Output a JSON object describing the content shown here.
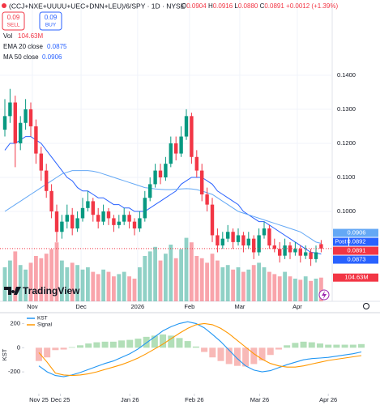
{
  "header": {
    "title": "(CCJ+NXE+UUUU+UEC+DNN+LEU)/6/SPY · 1D · NYSE",
    "ohlc": [
      {
        "key": "O",
        "value": "0.0904"
      },
      {
        "key": "H",
        "value": "0.0916"
      },
      {
        "key": "L",
        "value": "0.0880"
      },
      {
        "key": "C",
        "value": "0.0891"
      }
    ],
    "change": "+0.0012 (+1.39%)",
    "sell": {
      "price": "0.09",
      "label": "SELL"
    },
    "buy": {
      "price": "0.09",
      "label": "BUY"
    },
    "vol_label": "Vol",
    "watermark": "TradingView"
  },
  "chart_data": [
    {
      "type": "candlestick",
      "up_color": "#089981",
      "down_color": "#f23645",
      "grid": true,
      "ylim": [
        0.0736,
        0.1621
      ],
      "yticks": [
        {
          "value": 0.1,
          "label": "0.1000"
        },
        {
          "value": 0.11,
          "label": "0.1100"
        },
        {
          "value": 0.12,
          "label": "0.1200"
        },
        {
          "value": 0.13,
          "label": "0.1300"
        },
        {
          "value": 0.14,
          "label": "0.1400"
        }
      ],
      "xlim": [
        -0.9375,
        63.125
      ],
      "xticks": [
        {
          "value": 5.3,
          "label": "Nov"
        },
        {
          "value": 14.7,
          "label": "Dec"
        },
        {
          "value": 25.6,
          "label": "2026"
        },
        {
          "value": 35.6,
          "label": "Feb"
        },
        {
          "value": 45.3,
          "label": "Mar"
        },
        {
          "value": 56.4,
          "label": "Apr"
        }
      ],
      "candles": [
        [
          0.124,
          0.133,
          0.122,
          0.128
        ],
        [
          0.128,
          0.136,
          0.126,
          0.132
        ],
        [
          0.132,
          0.134,
          0.113,
          0.12
        ],
        [
          0.12,
          0.128,
          0.118,
          0.126
        ],
        [
          0.126,
          0.133,
          0.124,
          0.13
        ],
        [
          0.13,
          0.132,
          0.122,
          0.125
        ],
        [
          0.125,
          0.127,
          0.114,
          0.117
        ],
        [
          0.117,
          0.119,
          0.109,
          0.112
        ],
        [
          0.112,
          0.114,
          0.104,
          0.106
        ],
        [
          0.106,
          0.108,
          0.098,
          0.1
        ],
        [
          0.1,
          0.102,
          0.091,
          0.094
        ],
        [
          0.094,
          0.099,
          0.092,
          0.097
        ],
        [
          0.097,
          0.102,
          0.095,
          0.099
        ],
        [
          0.099,
          0.101,
          0.093,
          0.095
        ],
        [
          0.095,
          0.1,
          0.094,
          0.098
        ],
        [
          0.098,
          0.104,
          0.097,
          0.101
        ],
        [
          0.101,
          0.106,
          0.1,
          0.103
        ],
        [
          0.103,
          0.104,
          0.097,
          0.099
        ],
        [
          0.099,
          0.101,
          0.095,
          0.097
        ],
        [
          0.097,
          0.102,
          0.096,
          0.1
        ],
        [
          0.1,
          0.101,
          0.096,
          0.098
        ],
        [
          0.098,
          0.099,
          0.094,
          0.096
        ],
        [
          0.096,
          0.099,
          0.095,
          0.097
        ],
        [
          0.097,
          0.101,
          0.096,
          0.099
        ],
        [
          0.099,
          0.1,
          0.095,
          0.097
        ],
        [
          0.097,
          0.098,
          0.093,
          0.095
        ],
        [
          0.095,
          0.1,
          0.094,
          0.098
        ],
        [
          0.098,
          0.106,
          0.097,
          0.104
        ],
        [
          0.104,
          0.11,
          0.103,
          0.108
        ],
        [
          0.108,
          0.114,
          0.107,
          0.112
        ],
        [
          0.112,
          0.114,
          0.108,
          0.11
        ],
        [
          0.11,
          0.116,
          0.109,
          0.114
        ],
        [
          0.114,
          0.122,
          0.113,
          0.12
        ],
        [
          0.12,
          0.122,
          0.115,
          0.117
        ],
        [
          0.117,
          0.125,
          0.116,
          0.122
        ],
        [
          0.122,
          0.13,
          0.121,
          0.128
        ],
        [
          0.128,
          0.129,
          0.114,
          0.116
        ],
        [
          0.116,
          0.118,
          0.11,
          0.112
        ],
        [
          0.112,
          0.114,
          0.103,
          0.105
        ],
        [
          0.105,
          0.107,
          0.1,
          0.102
        ],
        [
          0.102,
          0.104,
          0.091,
          0.093
        ],
        [
          0.093,
          0.095,
          0.088,
          0.09
        ],
        [
          0.09,
          0.094,
          0.089,
          0.092
        ],
        [
          0.092,
          0.096,
          0.091,
          0.094
        ],
        [
          0.094,
          0.095,
          0.089,
          0.091
        ],
        [
          0.091,
          0.095,
          0.09,
          0.093
        ],
        [
          0.093,
          0.094,
          0.088,
          0.09
        ],
        [
          0.09,
          0.094,
          0.089,
          0.092
        ],
        [
          0.092,
          0.093,
          0.086,
          0.088
        ],
        [
          0.088,
          0.095,
          0.087,
          0.093
        ],
        [
          0.093,
          0.097,
          0.092,
          0.095
        ],
        [
          0.095,
          0.096,
          0.089,
          0.09
        ],
        [
          0.09,
          0.092,
          0.088,
          0.089
        ],
        [
          0.089,
          0.091,
          0.085,
          0.087
        ],
        [
          0.087,
          0.092,
          0.086,
          0.09
        ],
        [
          0.09,
          0.091,
          0.086,
          0.088
        ],
        [
          0.088,
          0.091,
          0.087,
          0.089
        ],
        [
          0.089,
          0.09,
          0.085,
          0.087
        ],
        [
          0.087,
          0.09,
          0.086,
          0.088
        ],
        [
          0.088,
          0.089,
          0.084,
          0.086
        ],
        [
          0.086,
          0.09,
          0.085,
          0.088
        ],
        [
          0.0904,
          0.0916,
          0.088,
          0.0891
        ]
      ],
      "volume": [
        150,
        180,
        220,
        160,
        140,
        170,
        200,
        190,
        210,
        230,
        260,
        180,
        150,
        170,
        160,
        140,
        150,
        130,
        120,
        140,
        130,
        110,
        120,
        130,
        110,
        100,
        150,
        200,
        220,
        240,
        180,
        210,
        250,
        190,
        230,
        280,
        260,
        200,
        190,
        170,
        210,
        180,
        150,
        160,
        140,
        150,
        130,
        140,
        160,
        170,
        150,
        130,
        120,
        110,
        130,
        110,
        100,
        95,
        110,
        90,
        100,
        104.63
      ],
      "volume_label": "104.63M",
      "volume_tag_color": "#f23645",
      "series": [
        {
          "name": "EMA 20 close",
          "color": "#2962ff",
          "values": [
            0.118,
            0.12,
            0.12,
            0.121,
            0.122,
            0.122,
            0.121,
            0.12,
            0.118,
            0.116,
            0.114,
            0.112,
            0.11,
            0.109,
            0.107,
            0.106,
            0.106,
            0.105,
            0.104,
            0.104,
            0.103,
            0.102,
            0.102,
            0.101,
            0.101,
            0.1,
            0.1,
            0.1,
            0.101,
            0.102,
            0.103,
            0.104,
            0.105,
            0.106,
            0.108,
            0.109,
            0.11,
            0.11,
            0.11,
            0.109,
            0.108,
            0.106,
            0.105,
            0.104,
            0.103,
            0.102,
            0.1,
            0.099,
            0.098,
            0.097,
            0.097,
            0.096,
            0.095,
            0.094,
            0.093,
            0.092,
            0.091,
            0.09,
            0.089,
            0.088,
            0.0878,
            0.0875
          ]
        },
        {
          "name": "MA 50 close",
          "color": "#64a8f5",
          "values": [
            0.1,
            0.101,
            0.102,
            0.103,
            0.104,
            0.105,
            0.106,
            0.107,
            0.108,
            0.109,
            0.11,
            0.111,
            0.1115,
            0.112,
            0.112,
            0.112,
            0.112,
            0.1118,
            0.1115,
            0.111,
            0.1105,
            0.11,
            0.1095,
            0.109,
            0.1085,
            0.108,
            0.1075,
            0.107,
            0.1068,
            0.1066,
            0.1065,
            0.1064,
            0.1064,
            0.1065,
            0.1066,
            0.1067,
            0.1066,
            0.1064,
            0.106,
            0.1055,
            0.105,
            0.104,
            0.103,
            0.102,
            0.101,
            0.1,
            0.0995,
            0.099,
            0.0985,
            0.098,
            0.0975,
            0.097,
            0.0965,
            0.096,
            0.0955,
            0.095,
            0.0945,
            0.094,
            0.093,
            0.092,
            0.091,
            0.0906
          ]
        }
      ],
      "price_tags": [
        {
          "label": "Post",
          "value": 0.0892,
          "color": "#2962ff"
        },
        {
          "value": 0.0873,
          "color": "#2962ff"
        }
      ]
    },
    {
      "type": "line",
      "ylabel": "KST",
      "grid": false,
      "ylim": [
        -380,
        290
      ],
      "yticks": [
        200,
        0,
        -200
      ],
      "xlim": [
        -1.76,
        40.37
      ],
      "xticks": [
        {
          "value": 0,
          "label": "Nov 25"
        },
        {
          "value": 2.6,
          "label": "Dec 25"
        },
        {
          "value": 11,
          "label": "Jan 26"
        },
        {
          "value": 18.8,
          "label": "Feb 26"
        },
        {
          "value": 26.7,
          "label": "Mar 26"
        },
        {
          "value": 35,
          "label": "Apr 26"
        }
      ],
      "series": [
        {
          "name": "KST",
          "color": "#2196f3",
          "values": [
            -150,
            -200,
            -230,
            -240,
            -225,
            -205,
            -180,
            -155,
            -130,
            -110,
            -80,
            -50,
            -10,
            40,
            90,
            140,
            175,
            200,
            215,
            200,
            165,
            110,
            50,
            -20,
            -90,
            -150,
            -185,
            -200,
            -190,
            -165,
            -140,
            -120,
            -100,
            -90,
            -85,
            -80,
            -70,
            -60,
            -50,
            -35
          ]
        },
        {
          "name": "Signal",
          "color": "#ff9800",
          "values": [
            -40,
            -120,
            -210,
            -225,
            -230,
            -225,
            -215,
            -200,
            -180,
            -160,
            -140,
            -115,
            -85,
            -50,
            -10,
            30,
            75,
            120,
            160,
            190,
            200,
            190,
            160,
            115,
            60,
            5,
            -50,
            -95,
            -130,
            -150,
            -160,
            -160,
            -150,
            -135,
            -120,
            -105,
            -95,
            -85,
            -75,
            -65
          ]
        }
      ],
      "histogram": [
        -110,
        -80,
        -20,
        -15,
        5,
        20,
        35,
        45,
        50,
        50,
        60,
        65,
        75,
        90,
        100,
        110,
        100,
        80,
        55,
        10,
        -35,
        -80,
        -110,
        -135,
        -150,
        -155,
        -135,
        -105,
        -60,
        -15,
        20,
        40,
        50,
        45,
        35,
        25,
        25,
        25,
        25,
        30
      ],
      "histogram_colors": {
        "up": "#b2dfb8",
        "down": "#f8b9b7"
      }
    }
  ]
}
